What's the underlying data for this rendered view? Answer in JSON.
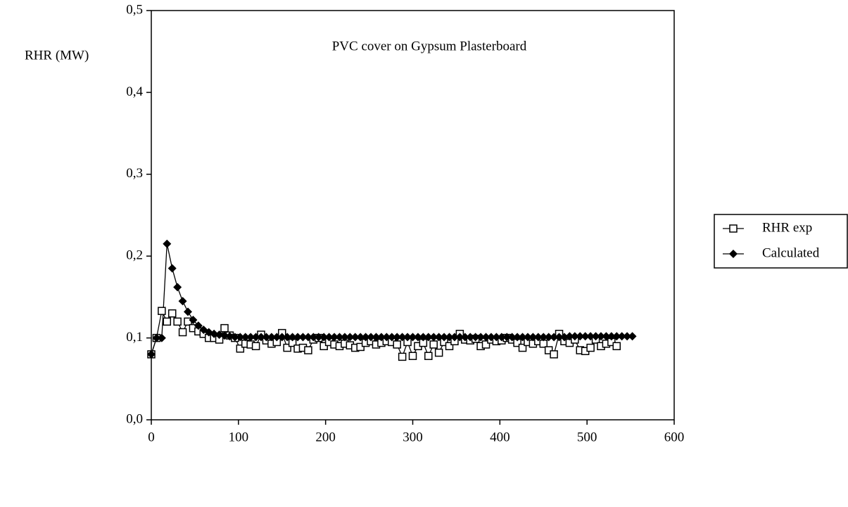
{
  "chart_data": {
    "type": "line",
    "title": "PVC cover on Gypsum Plasterboard",
    "y_label": "RHR (MW)",
    "x": [
      0,
      6,
      12,
      18,
      24,
      30,
      36,
      42,
      48,
      54,
      60,
      66,
      72,
      78,
      84,
      90,
      96,
      102,
      108,
      114,
      120,
      126,
      132,
      138,
      144,
      150,
      156,
      162,
      168,
      174,
      180,
      186,
      192,
      198,
      204,
      210,
      216,
      222,
      228,
      234,
      240,
      246,
      252,
      258,
      264,
      270,
      276,
      282,
      288,
      294,
      300,
      306,
      312,
      318,
      324,
      330,
      336,
      342,
      348,
      354,
      360,
      366,
      372,
      378,
      384,
      390,
      396,
      402,
      408,
      414,
      420,
      426,
      432,
      438,
      444,
      450,
      456,
      462,
      468,
      474,
      480,
      486,
      492,
      498,
      504,
      510,
      516,
      522,
      528,
      534,
      540,
      546,
      552
    ],
    "series": [
      {
        "name": "RHR exp",
        "color": "#000000",
        "marker": "square",
        "values": [
          0.08,
          0.1,
          0.133,
          0.12,
          0.13,
          0.12,
          0.107,
          0.12,
          0.112,
          0.108,
          0.105,
          0.1,
          0.1,
          0.098,
          0.112,
          0.103,
          0.1,
          0.087,
          0.093,
          0.092,
          0.09,
          0.104,
          0.097,
          0.093,
          0.095,
          0.106,
          0.088,
          0.094,
          0.087,
          0.088,
          0.085,
          0.098,
          0.1,
          0.09,
          0.095,
          0.092,
          0.09,
          0.093,
          0.091,
          0.088,
          0.089,
          0.094,
          0.096,
          0.092,
          0.094,
          0.096,
          0.095,
          0.092,
          0.077,
          0.095,
          0.078,
          0.09,
          0.094,
          0.078,
          0.092,
          0.082,
          0.095,
          0.09,
          0.096,
          0.105,
          0.098,
          0.097,
          0.099,
          0.09,
          0.092,
          0.098,
          0.096,
          0.097,
          0.1,
          0.098,
          0.094,
          0.088,
          0.095,
          0.093,
          0.096,
          0.093,
          0.085,
          0.08,
          0.105,
          0.096,
          0.094,
          0.098,
          0.085,
          0.084,
          0.088,
          0.098,
          0.09,
          0.093,
          0.095,
          0.09,
          null,
          null,
          null
        ]
      },
      {
        "name": "Calculated",
        "color": "#000000",
        "marker": "diamond",
        "values": [
          0.08,
          0.1,
          0.1,
          0.215,
          0.185,
          0.162,
          0.145,
          0.132,
          0.122,
          0.115,
          0.11,
          0.107,
          0.105,
          0.104,
          0.103,
          0.102,
          0.101,
          0.101,
          0.101,
          0.101,
          0.101,
          0.101,
          0.101,
          0.101,
          0.101,
          0.101,
          0.101,
          0.101,
          0.101,
          0.101,
          0.101,
          0.101,
          0.101,
          0.101,
          0.101,
          0.101,
          0.101,
          0.101,
          0.101,
          0.101,
          0.101,
          0.101,
          0.101,
          0.101,
          0.101,
          0.101,
          0.101,
          0.101,
          0.101,
          0.101,
          0.101,
          0.101,
          0.101,
          0.101,
          0.101,
          0.101,
          0.101,
          0.101,
          0.101,
          0.101,
          0.101,
          0.101,
          0.101,
          0.101,
          0.101,
          0.101,
          0.101,
          0.101,
          0.101,
          0.101,
          0.101,
          0.101,
          0.101,
          0.101,
          0.101,
          0.101,
          0.101,
          0.101,
          0.101,
          0.101,
          0.102,
          0.102,
          0.102,
          0.102,
          0.102,
          0.102,
          0.102,
          0.102,
          0.102,
          0.102,
          0.102,
          0.102,
          0.102
        ]
      }
    ],
    "xlim": [
      0,
      600
    ],
    "xticks": [
      0,
      100,
      200,
      300,
      400,
      500,
      600
    ],
    "ylim": [
      0,
      0.5
    ],
    "yticks": [
      {
        "value": 0,
        "label": "0,0"
      },
      {
        "value": 0.1,
        "label": "0,1"
      },
      {
        "value": 0.2,
        "label": "0,2"
      },
      {
        "value": 0.3,
        "label": "0,3"
      },
      {
        "value": 0.4,
        "label": "0,4"
      },
      {
        "value": 0.5,
        "label": "0,5"
      }
    ],
    "legend": "right"
  }
}
